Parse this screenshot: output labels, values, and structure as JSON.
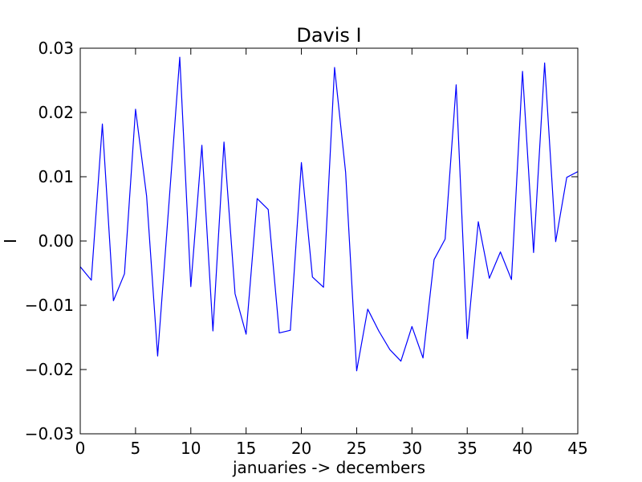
{
  "chart_data": {
    "type": "line",
    "title": "Davis I",
    "xlabel": "januaries -> decembers",
    "ylabel": "I",
    "xlim": [
      0,
      45
    ],
    "ylim": [
      -0.03,
      0.03
    ],
    "xticks": [
      0,
      5,
      10,
      15,
      20,
      25,
      30,
      35,
      40,
      45
    ],
    "xtick_labels": [
      "0",
      "5",
      "10",
      "15",
      "20",
      "25",
      "30",
      "35",
      "40",
      "45"
    ],
    "yticks": [
      0.03,
      0.02,
      0.01,
      0.0,
      -0.01,
      -0.02,
      -0.03
    ],
    "ytick_labels": [
      "0.03",
      "0.02",
      "0.01",
      "0.00",
      "−0.01",
      "−0.02",
      "−0.03"
    ],
    "grid": false,
    "series": [
      {
        "color": "#0000ff",
        "x": [
          0,
          1,
          2,
          3,
          4,
          5,
          6,
          7,
          8,
          9,
          10,
          11,
          12,
          13,
          14,
          15,
          16,
          17,
          18,
          19,
          20,
          21,
          22,
          23,
          24,
          25,
          26,
          27,
          28,
          29,
          30,
          31,
          32,
          33,
          34,
          35,
          36,
          37,
          38,
          39,
          40,
          41,
          42,
          43,
          44,
          45
        ],
        "y": [
          -0.004,
          -0.0061,
          0.0182,
          -0.0093,
          -0.0051,
          0.0205,
          0.007,
          -0.0179,
          0.0053,
          0.0286,
          -0.0071,
          0.0149,
          -0.014,
          0.0154,
          -0.0082,
          -0.0145,
          0.0066,
          0.0049,
          -0.0143,
          -0.0139,
          0.0122,
          -0.0056,
          -0.0072,
          0.027,
          0.0107,
          -0.0202,
          -0.0106,
          -0.014,
          -0.0169,
          -0.0187,
          -0.0133,
          -0.0182,
          -0.0029,
          0.0003,
          0.0243,
          -0.0152,
          0.003,
          -0.0058,
          -0.0017,
          -0.006,
          0.0264,
          -0.0018,
          0.0277,
          -0.0001,
          0.0099,
          0.0108
        ]
      }
    ]
  }
}
